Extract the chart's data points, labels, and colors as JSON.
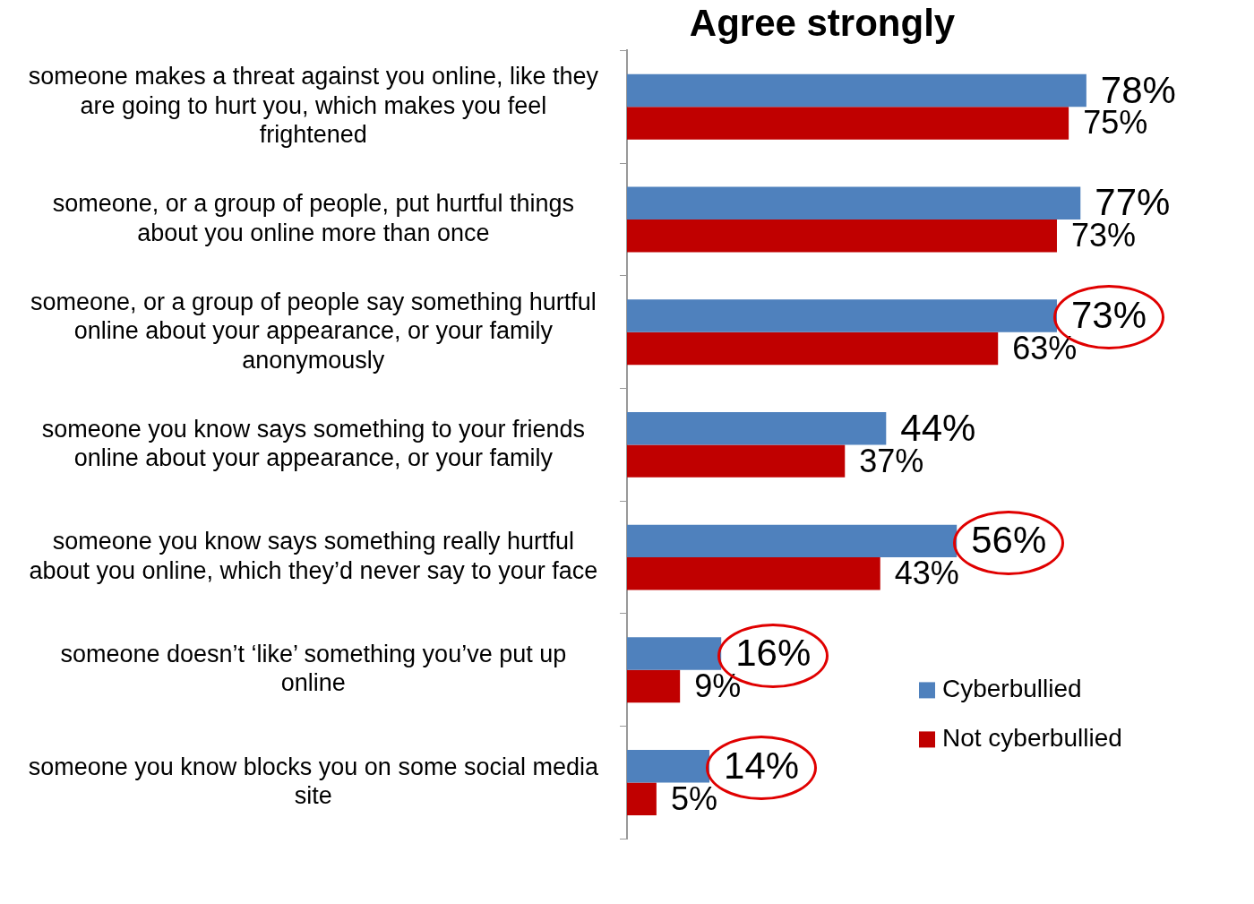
{
  "chart_data": {
    "type": "bar",
    "orientation": "horizontal",
    "title": "Agree strongly",
    "categories": [
      "someone makes a threat against you online, like they are going to hurt you, which makes you feel frightened",
      "someone, or a group of people, put hurtful things about you online more than once",
      "someone, or a group of people say something hurtful online about your appearance, or your family anonymously",
      "someone you know says something to your friends online about your appearance, or your family",
      "someone you know says something really hurtful about you online, which they’d never say to your face",
      "someone doesn’t ‘like’ something you’ve put up online",
      "someone you know blocks you on some social media site"
    ],
    "series": [
      {
        "name": "Cyberbullied",
        "color": "#4f81bd",
        "values": [
          78,
          77,
          73,
          44,
          56,
          16,
          14
        ],
        "value_labels": [
          "78%",
          "77%",
          "73%",
          "44%",
          "56%",
          "16%",
          "14%"
        ]
      },
      {
        "name": "Not cyberbullied",
        "color": "#c00000",
        "values": [
          75,
          73,
          63,
          37,
          43,
          9,
          5
        ],
        "value_labels": [
          "75%",
          "73%",
          "63%",
          "37%",
          "43%",
          "9%",
          "5%"
        ]
      }
    ],
    "tick_labels": "y",
    "legend": "bottom right",
    "grid": false
  }
}
